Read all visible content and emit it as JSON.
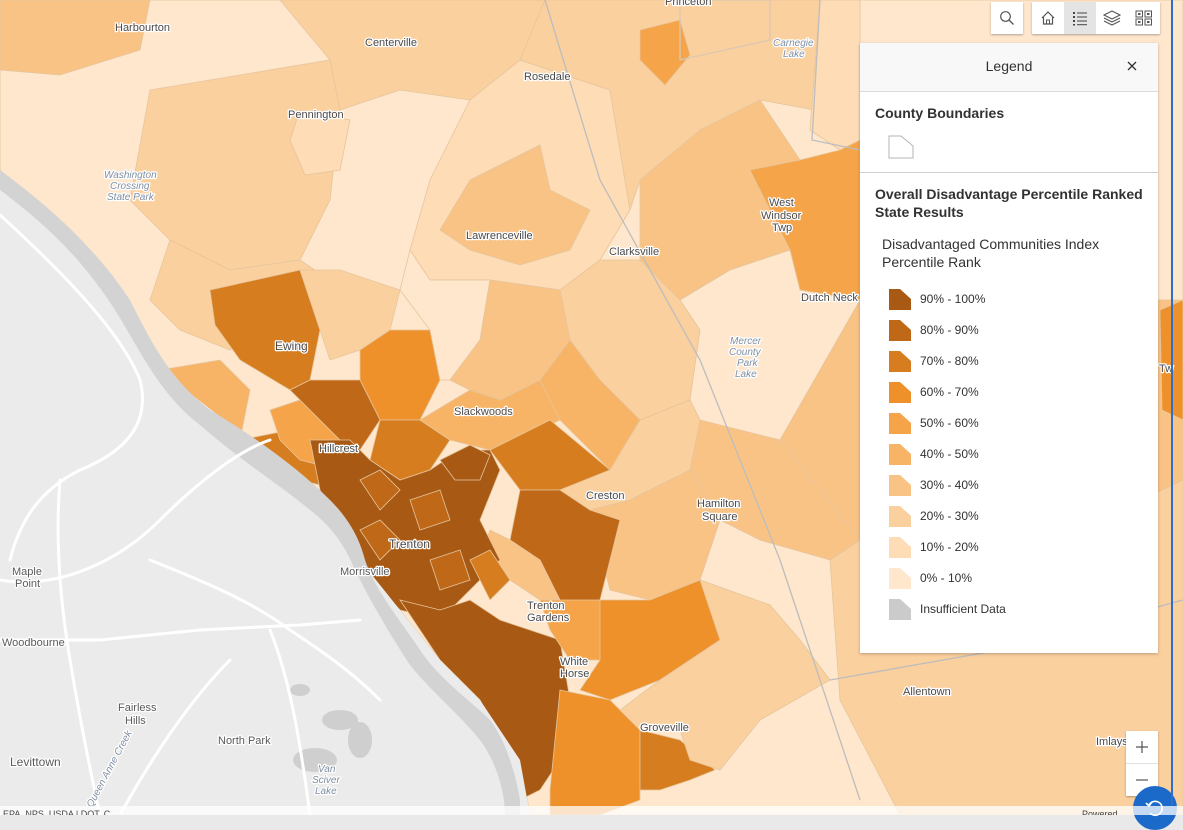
{
  "map": {
    "labels": {
      "princeton": "Princeton",
      "harbourton": "Harbourton",
      "centerville": "Centerville",
      "rosedale": "Rosedale",
      "carnegie_lake_1": "Carnegie",
      "carnegie_lake_2": "Lake",
      "pennington": "Pennington",
      "washington_1": "Washington",
      "washington_2": "Crossing",
      "washington_3": "State Park",
      "west_windsor_1": "West",
      "west_windsor_2": "Windsor",
      "west_windsor_3": "Twp",
      "lawrenceville": "Lawrenceville",
      "clarksville": "Clarksville",
      "dutch_neck": "Dutch Neck",
      "mercer_1": "Mercer",
      "mercer_2": "County",
      "mercer_3": "Park",
      "mercer_4": "Lake",
      "ewing": "Ewing",
      "slackwoods": "Slackwoods",
      "hillcrest": "Hillcrest",
      "creston": "Creston",
      "hamilton_1": "Hamilton",
      "hamilton_2": "Square",
      "trenton": "Trenton",
      "morrisville": "Morrisville",
      "maple_point_1": "Maple",
      "maple_point_2": "Point",
      "trenton_gardens_1": "Trenton",
      "trenton_gardens_2": "Gardens",
      "woodbourne": "Woodbourne",
      "white_horse_1": "White",
      "white_horse_2": "Horse",
      "allentown": "Allentown",
      "fairless_1": "Fairless",
      "fairless_2": "Hills",
      "north_park": "North Park",
      "groveville": "Groveville",
      "levittown": "Levittown",
      "queen_anne": "Queen Anne Creek",
      "van_sciver_1": "Van",
      "van_sciver_2": "Sciver",
      "van_sciver_3": "Lake",
      "imlays": "Imlays",
      "tw": "Tw"
    }
  },
  "toolbar": {
    "search_icon": "search-icon",
    "home_icon": "home-icon",
    "legend_icon": "legend-list-icon",
    "layers_icon": "layers-icon",
    "basemap_icon": "basemap-gallery-icon"
  },
  "legend": {
    "title": "Legend",
    "layers": [
      {
        "title": "County Boundaries"
      },
      {
        "title": "Overall Disadvantage Percentile Ranked State Results",
        "subtitle": "Disadvantaged Communities Index Percentile Rank",
        "classes": [
          {
            "label": "90% - 100%",
            "color": "#a85a15"
          },
          {
            "label": "80% - 90%",
            "color": "#bf6818"
          },
          {
            "label": "70% - 80%",
            "color": "#d67d1f"
          },
          {
            "label": "60% - 70%",
            "color": "#ee912b"
          },
          {
            "label": "50% - 60%",
            "color": "#f5a44a"
          },
          {
            "label": "40% - 50%",
            "color": "#f8b466"
          },
          {
            "label": "30% - 40%",
            "color": "#f9c386"
          },
          {
            "label": "20% - 30%",
            "color": "#fbd09f"
          },
          {
            "label": "10% - 20%",
            "color": "#fddcb6"
          },
          {
            "label": "0% - 10%",
            "color": "#fee7cd"
          },
          {
            "label": "Insufficient Data",
            "color": "#cbcbcb"
          }
        ]
      }
    ]
  },
  "zoom": {
    "in_label": "+",
    "out_label": "−"
  },
  "attribution": {
    "left": "EPA, NPS, USDA | DOT, C...",
    "right": "Powered..."
  }
}
